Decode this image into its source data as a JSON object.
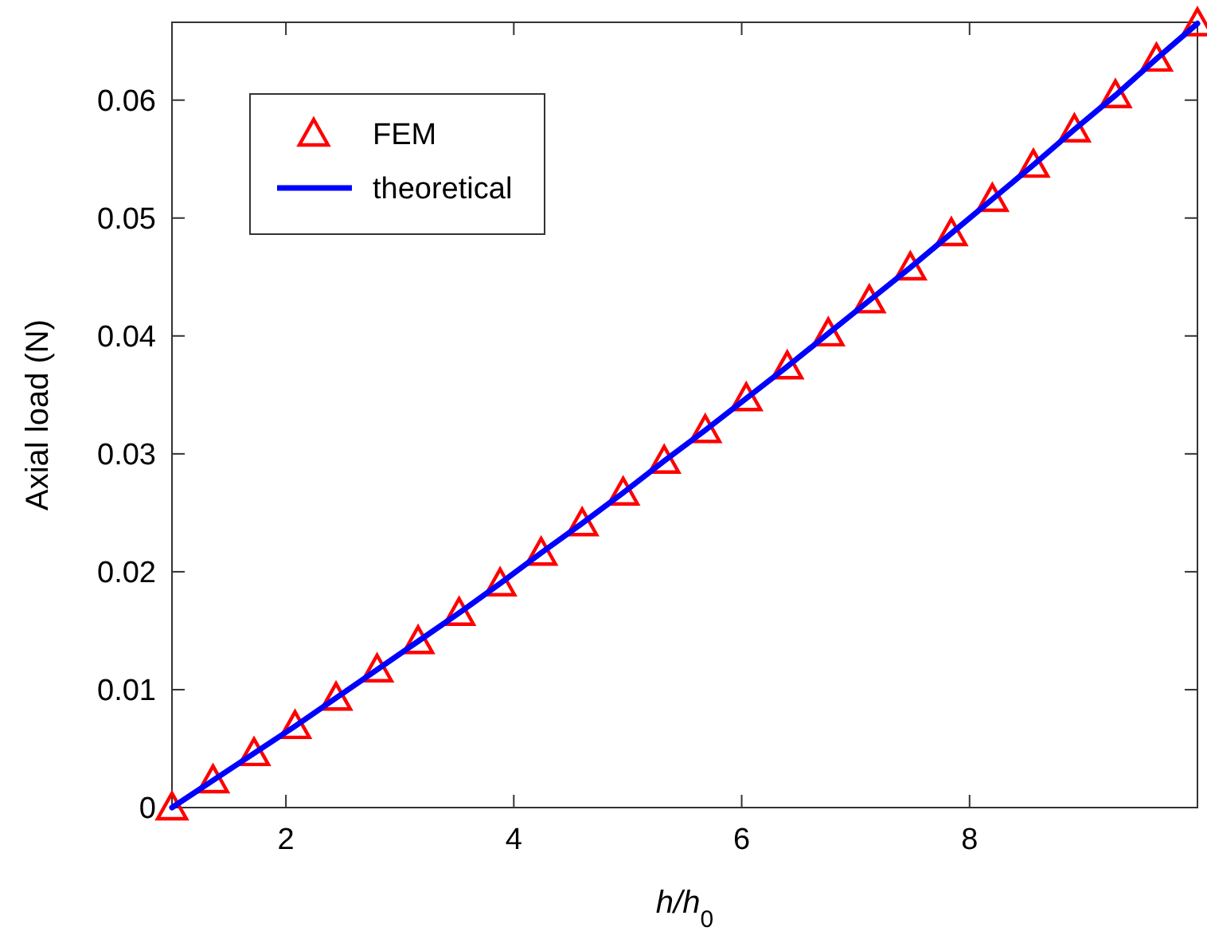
{
  "chart_data": {
    "type": "scatter",
    "xlabel": "h/h$_{0}$",
    "ylabel": "Axial load (N)",
    "xlim": [
      1,
      10
    ],
    "ylim": [
      0,
      0.0666
    ],
    "xticks": [
      2,
      4,
      6,
      8
    ],
    "yticks": [
      0,
      0.01,
      0.02,
      0.03,
      0.04,
      0.05,
      0.06
    ],
    "x": [
      1,
      1.36,
      1.72,
      2.08,
      2.44,
      2.8,
      3.16,
      3.52,
      3.88,
      4.24,
      4.6,
      4.96,
      5.32,
      5.68,
      6.04,
      6.4,
      6.76,
      7.12,
      7.48,
      7.84,
      8.2,
      8.56,
      8.92,
      9.28,
      9.64,
      10
    ],
    "grid": false,
    "legend": "top left",
    "series": [
      {
        "name": "FEM",
        "marker": "triangle",
        "color": "#ff0000",
        "values": [
          0,
          0.0023,
          0.0046,
          0.0069,
          0.0093,
          0.0117,
          0.0141,
          0.0165,
          0.019,
          0.0216,
          0.0241,
          0.0267,
          0.0294,
          0.032,
          0.0347,
          0.0374,
          0.0402,
          0.043,
          0.0458,
          0.0487,
          0.0516,
          0.0545,
          0.0575,
          0.0604,
          0.0635,
          0.0665
        ]
      },
      {
        "name": "theoretical",
        "type": "line",
        "marker": "none",
        "line_style": "solid",
        "color": "#0000ff",
        "values": [
          0,
          0.0023,
          0.0046,
          0.0069,
          0.0093,
          0.0117,
          0.0141,
          0.0165,
          0.019,
          0.0216,
          0.0241,
          0.0267,
          0.0294,
          0.032,
          0.0347,
          0.0374,
          0.0402,
          0.043,
          0.0458,
          0.0487,
          0.0516,
          0.0545,
          0.0575,
          0.0604,
          0.0635,
          0.0665
        ]
      }
    ]
  }
}
